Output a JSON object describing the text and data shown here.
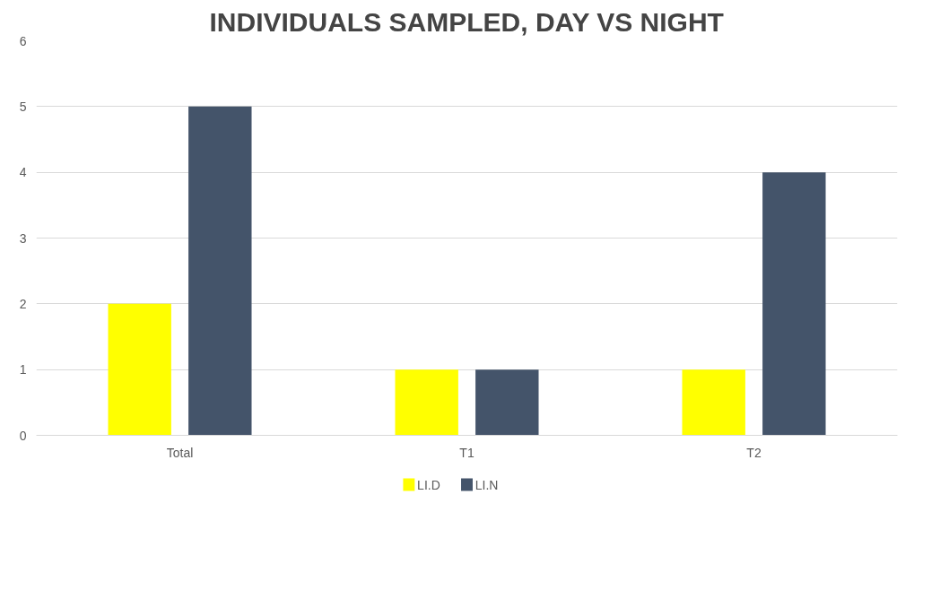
{
  "chart_data": {
    "type": "bar",
    "title": "INDIVIDUALS SAMPLED, DAY VS NIGHT",
    "categories": [
      "Total",
      "T1",
      "T2"
    ],
    "series": [
      {
        "name": "LI.D",
        "color": "#ffff00",
        "values": [
          2,
          1,
          1
        ]
      },
      {
        "name": "LI.N",
        "color": "#44546a",
        "values": [
          5,
          1,
          4
        ]
      }
    ],
    "ylim": [
      0,
      6
    ],
    "yticks": [
      0,
      1,
      2,
      3,
      4,
      5,
      6
    ],
    "grid": "y",
    "legend": "bottom"
  }
}
